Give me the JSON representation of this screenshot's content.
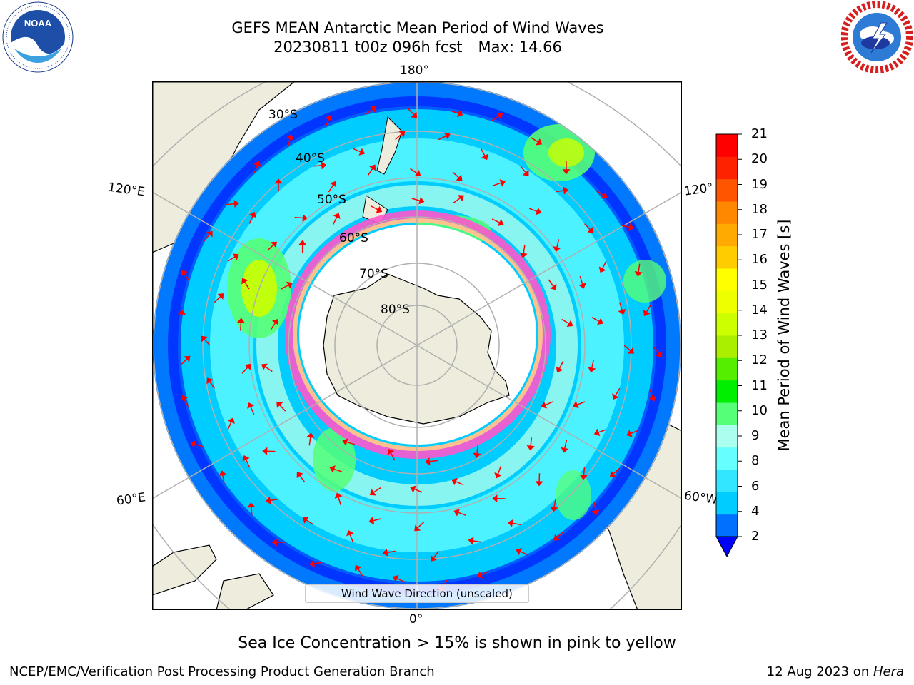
{
  "title": {
    "line1": "GEFS MEAN Antarctic Mean Period of Wind Waves",
    "line2_left": "20230811 t00z 096h fcst",
    "line2_right": "Max: 14.66"
  },
  "map": {
    "lon_labels": [
      "180°",
      "120°E",
      "120°",
      "60°E",
      "60°W",
      "0°"
    ],
    "lat_labels": [
      "30°S",
      "40°S",
      "50°S",
      "60°S",
      "70°S",
      "80°S"
    ]
  },
  "colorbar": {
    "label": "Mean Period of Wind Waves [s]",
    "ticks": [
      "2",
      "4",
      "6",
      "8",
      "9",
      "10",
      "11",
      "12",
      "13",
      "14",
      "15",
      "16",
      "17",
      "18",
      "19",
      "20",
      "21"
    ],
    "colors": [
      "#0070ff",
      "#00ccff",
      "#33e6ff",
      "#66ffff",
      "#aaffee",
      "#55ff77",
      "#00ee00",
      "#55ee00",
      "#aaee00",
      "#ccff00",
      "#eeff00",
      "#ffff00",
      "#ffcc00",
      "#ffaa00",
      "#ff8800",
      "#ff5500",
      "#ff2200",
      "#ff0000"
    ],
    "under_color": "#0000ff",
    "range": [
      2,
      21
    ]
  },
  "legend": {
    "label": "Wind Wave Direction (unscaled)"
  },
  "caption": "Sea Ice Concentration > 15% is shown in pink to yellow",
  "footer": {
    "left": "NCEP/EMC/Verification Post Processing Product Generation Branch",
    "right_date": "12 Aug 2023 on ",
    "right_host": "Hera"
  },
  "logos": {
    "left": "noaa-logo",
    "right": "nws-logo"
  }
}
